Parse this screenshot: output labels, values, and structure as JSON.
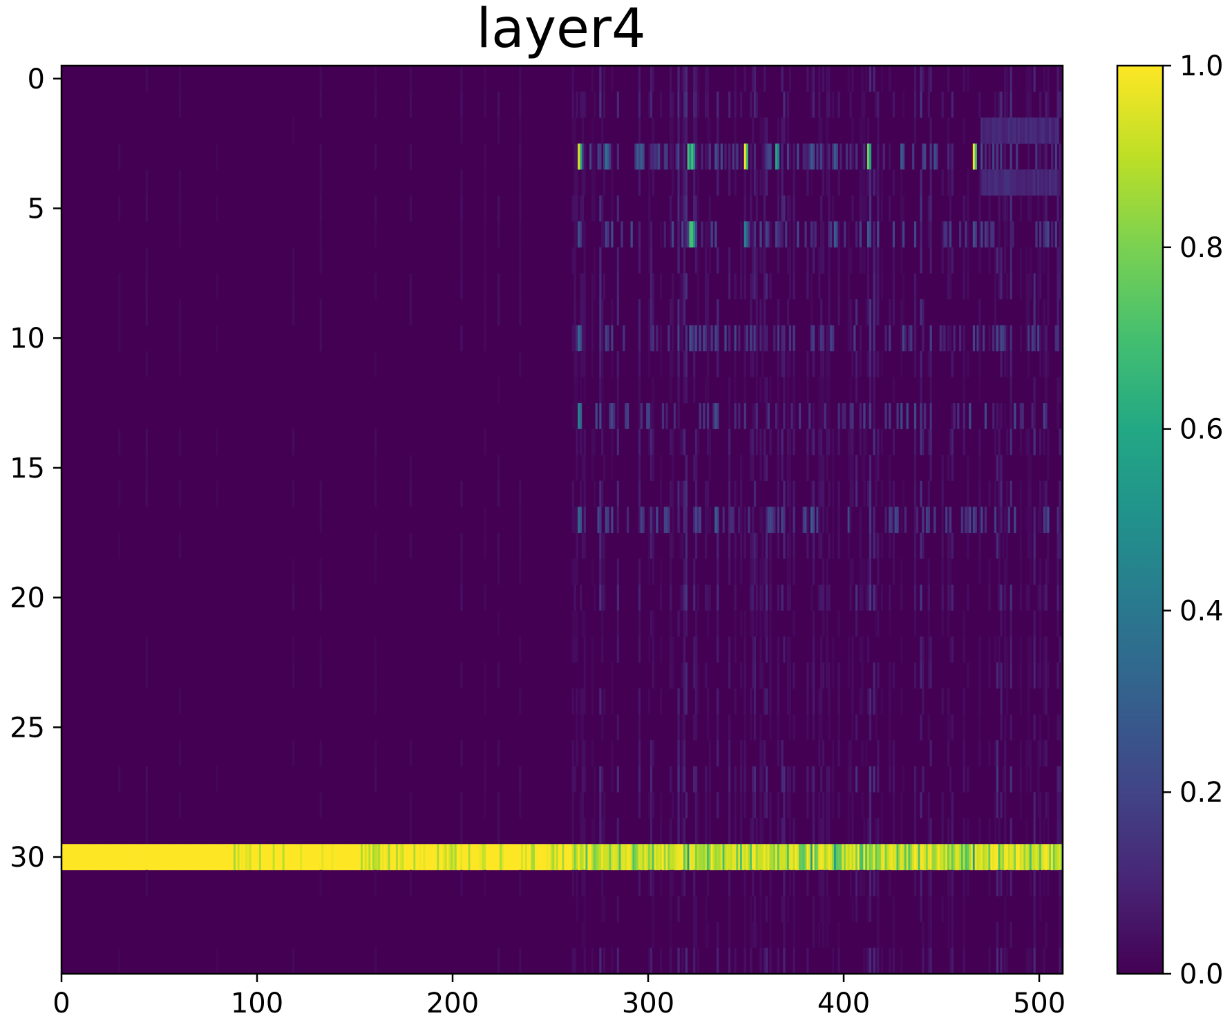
{
  "chart_data": {
    "type": "heatmap",
    "title": "layer4",
    "xlabel": "",
    "ylabel": "",
    "n_rows": 35,
    "n_cols": 512,
    "xlim": [
      0,
      512
    ],
    "ylim": [
      34.5,
      -0.5
    ],
    "x_ticks": [
      0,
      100,
      200,
      300,
      400,
      500
    ],
    "y_ticks": [
      0,
      5,
      10,
      15,
      20,
      25,
      30
    ],
    "colormap": "viridis",
    "colorbar": {
      "vmin": 0.0,
      "vmax": 1.0,
      "ticks": [
        "0.0",
        "0.2",
        "0.4",
        "0.6",
        "0.8",
        "1.0"
      ]
    },
    "background_value": 0.0,
    "active_rows": [
      {
        "row": 3,
        "peaks": [
          [
            264,
            0.95
          ],
          [
            278,
            0.4
          ],
          [
            294,
            0.3
          ],
          [
            296,
            0.3
          ],
          [
            320,
            0.7
          ],
          [
            322,
            0.7
          ],
          [
            334,
            0.25
          ],
          [
            349,
            1.0
          ],
          [
            365,
            0.6
          ],
          [
            383,
            0.3
          ],
          [
            395,
            0.3
          ],
          [
            412,
            0.8
          ],
          [
            429,
            0.3
          ],
          [
            446,
            0.25
          ],
          [
            466,
            1.0
          ]
        ]
      },
      {
        "row": 6,
        "peaks": [
          [
            264,
            0.25
          ],
          [
            278,
            0.2
          ],
          [
            321,
            0.7
          ],
          [
            322,
            0.7
          ],
          [
            349,
            0.45
          ],
          [
            365,
            0.2
          ],
          [
            395,
            0.3
          ],
          [
            412,
            0.3
          ],
          [
            466,
            0.25
          ]
        ]
      },
      {
        "row": 10,
        "peaks": [
          [
            264,
            0.35
          ],
          [
            278,
            0.2
          ],
          [
            321,
            0.25
          ],
          [
            334,
            0.2
          ]
        ]
      },
      {
        "row": 13,
        "peaks": [
          [
            264,
            0.45
          ],
          [
            334,
            0.25
          ]
        ]
      },
      {
        "row": 17,
        "peaks": [
          [
            264,
            0.35
          ],
          [
            296,
            0.2
          ],
          [
            309,
            0.2
          ],
          [
            334,
            0.3
          ],
          [
            383,
            0.3
          ],
          [
            466,
            0.2
          ]
        ]
      },
      {
        "row": 30,
        "peaks": []
      }
    ],
    "bright_row": {
      "row": 30,
      "value_range": [
        0.6,
        1.0
      ],
      "mostly": 1.0
    },
    "active_column_range": [
      262,
      512
    ]
  }
}
